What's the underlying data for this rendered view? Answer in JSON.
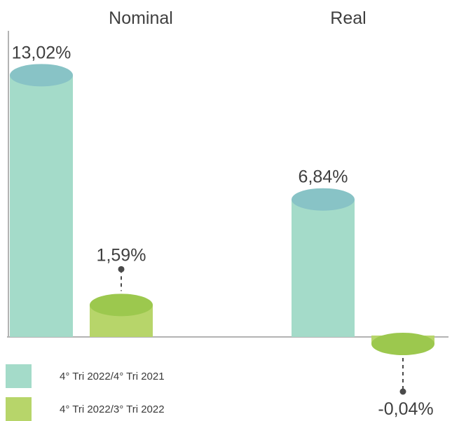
{
  "colors": {
    "series1_body": "#a4dbc9",
    "series1_top": "#88c3c6",
    "series2_body": "#b7d56a",
    "series2_top": "#9cc84e",
    "axis": "#b3b3b3",
    "leader": "#4a4a4a"
  },
  "chart_data": {
    "type": "bar",
    "categories": [
      "Nominal",
      "Real"
    ],
    "series": [
      {
        "name": "4° Tri 2022/4° Tri 2021",
        "values": [
          13.02,
          6.84
        ],
        "labels": [
          "13,02%",
          "6,84%"
        ]
      },
      {
        "name": "4° Tri 2022/3° Tri 2022",
        "values": [
          1.59,
          -0.04
        ],
        "labels": [
          "1,59%",
          "-0,04%"
        ]
      }
    ],
    "legend_position": "bottom-left",
    "grid": false
  }
}
